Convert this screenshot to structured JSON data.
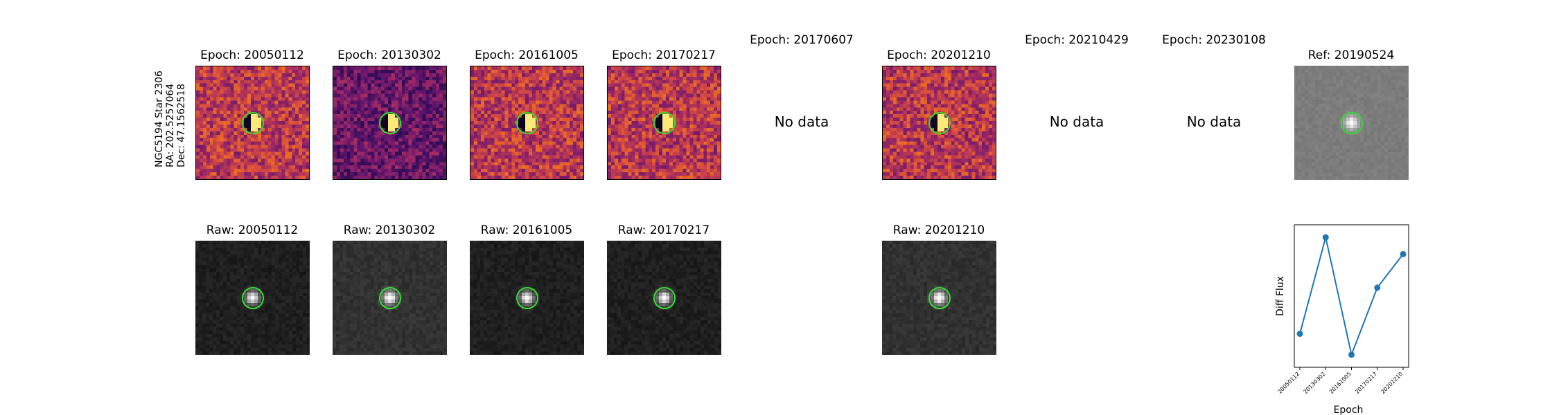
{
  "star_label": {
    "line1": "NGC5194 Star 2306",
    "line2": "RA: 202.5257064",
    "line3": "Dec: 47.1562518"
  },
  "top_row": [
    {
      "title": "Epoch: 20050112",
      "has_data": true
    },
    {
      "title": "Epoch: 20130302",
      "has_data": true
    },
    {
      "title": "Epoch: 20161005",
      "has_data": true
    },
    {
      "title": "Epoch: 20170217",
      "has_data": true
    },
    {
      "title": "Epoch: 20170607",
      "has_data": false,
      "no_data_text": "No data"
    },
    {
      "title": "Epoch: 20201210",
      "has_data": true
    },
    {
      "title": "Epoch: 20210429",
      "has_data": false,
      "no_data_text": "No data"
    },
    {
      "title": "Epoch: 20230108",
      "has_data": false,
      "no_data_text": "No data"
    },
    {
      "title": "Ref: 20190524",
      "has_data": true
    }
  ],
  "bottom_row": [
    {
      "title": "Raw: 20050112"
    },
    {
      "title": "Raw: 20130302"
    },
    {
      "title": "Raw: 20161005"
    },
    {
      "title": "Raw: 20170217"
    },
    {
      "title": "Raw: 20201210"
    }
  ],
  "colors": {
    "circle": "#2ee02e",
    "line": "#1f77b4"
  },
  "chart_data": {
    "type": "line",
    "categories": [
      "20050112",
      "20130302",
      "20161005",
      "20170217",
      "20201210"
    ],
    "values": [
      0.3,
      1.45,
      0.05,
      0.85,
      1.25
    ],
    "xlabel": "Epoch",
    "ylabel": "Diff Flux",
    "ylim": [
      -0.1,
      1.6
    ],
    "yticks_labeled": false,
    "grid": false
  }
}
